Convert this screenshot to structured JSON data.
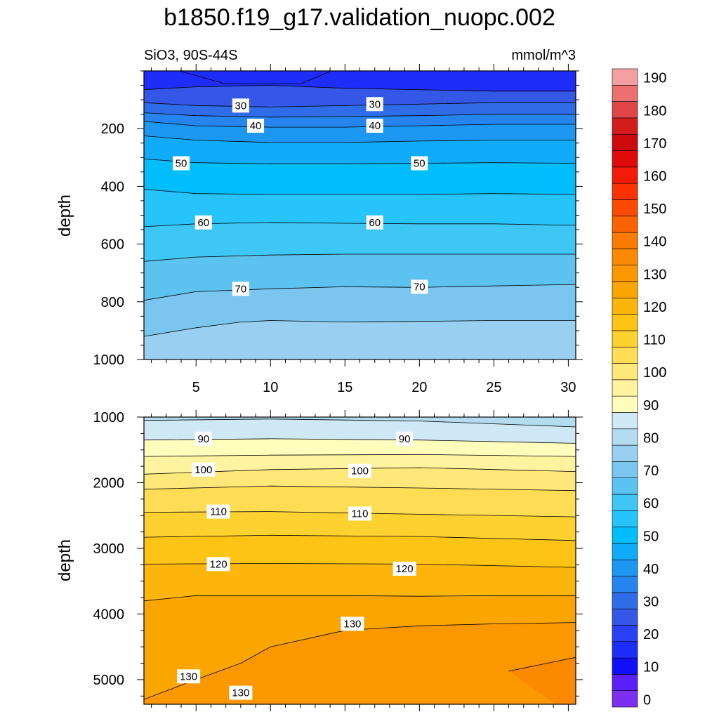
{
  "title": "b1850.f19_g17.validation_nuopc.002",
  "chart_data": [
    {
      "type": "heatmap",
      "panel": "upper",
      "subtitle_left": "SiO3, 90S-44S",
      "subtitle_right": "mmol/m^3",
      "xlabel": "",
      "ylabel": "depth",
      "xlim": [
        1.5,
        30.5
      ],
      "ylim": [
        1000,
        0
      ],
      "x_ticks": [
        "5",
        "10",
        "15",
        "20",
        "25",
        "30"
      ],
      "y_ticks": [
        "200",
        "400",
        "600",
        "800",
        "1000"
      ],
      "contours": [
        {
          "level": 20,
          "x": [
            4,
            7,
            10,
            12,
            14
          ],
          "y": [
            2,
            45,
            45,
            45,
            2
          ]
        },
        {
          "level": 25,
          "x": [
            1.5,
            5,
            10,
            15,
            20,
            25,
            30.5
          ],
          "y": [
            65,
            55,
            50,
            60,
            65,
            70,
            70
          ]
        },
        {
          "level": 30,
          "x": [
            1.5,
            5,
            10,
            15,
            20,
            25,
            30.5
          ],
          "y": [
            110,
            120,
            125,
            120,
            115,
            110,
            110
          ]
        },
        {
          "level": 35,
          "x": [
            1.5,
            5,
            10,
            15,
            20,
            25,
            30.5
          ],
          "y": [
            145,
            155,
            160,
            158,
            155,
            150,
            150
          ]
        },
        {
          "level": 40,
          "x": [
            1.5,
            5,
            10,
            15,
            20,
            25,
            30.5
          ],
          "y": [
            175,
            190,
            195,
            195,
            190,
            185,
            185
          ]
        },
        {
          "level": 45,
          "x": [
            1.5,
            5,
            10,
            15,
            20,
            25,
            30.5
          ],
          "y": [
            225,
            240,
            248,
            248,
            243,
            240,
            240
          ]
        },
        {
          "level": 50,
          "x": [
            1.5,
            5,
            10,
            15,
            20,
            25,
            30.5
          ],
          "y": [
            305,
            318,
            322,
            322,
            320,
            318,
            320
          ]
        },
        {
          "level": 55,
          "x": [
            1.5,
            5,
            10,
            15,
            20,
            25,
            30.5
          ],
          "y": [
            410,
            425,
            428,
            428,
            428,
            425,
            428
          ]
        },
        {
          "level": 60,
          "x": [
            1.5,
            5,
            10,
            15,
            20,
            25,
            30.5
          ],
          "y": [
            540,
            530,
            525,
            528,
            530,
            530,
            535
          ]
        },
        {
          "level": 65,
          "x": [
            1.5,
            5,
            10,
            15,
            20,
            25,
            30.5
          ],
          "y": [
            660,
            645,
            638,
            635,
            635,
            635,
            635
          ]
        },
        {
          "level": 70,
          "x": [
            1.5,
            5,
            10,
            15,
            20,
            25,
            30.5
          ],
          "y": [
            795,
            765,
            755,
            748,
            750,
            745,
            740
          ]
        },
        {
          "level": 75,
          "x": [
            1.5,
            5,
            8,
            10,
            15,
            20,
            25,
            30.5
          ],
          "y": [
            920,
            890,
            870,
            865,
            870,
            868,
            865,
            865
          ]
        }
      ],
      "contour_labels": [
        {
          "text": "30",
          "x": 8,
          "y": 120
        },
        {
          "text": "30",
          "x": 17,
          "y": 115
        },
        {
          "text": "40",
          "x": 9,
          "y": 190
        },
        {
          "text": "40",
          "x": 17,
          "y": 190
        },
        {
          "text": "50",
          "x": 4,
          "y": 320
        },
        {
          "text": "50",
          "x": 20,
          "y": 320
        },
        {
          "text": "60",
          "x": 5.5,
          "y": 525
        },
        {
          "text": "60",
          "x": 17,
          "y": 525
        },
        {
          "text": "70",
          "x": 8,
          "y": 755
        },
        {
          "text": "70",
          "x": 20,
          "y": 748
        }
      ]
    },
    {
      "type": "heatmap",
      "panel": "lower",
      "xlabel": "",
      "ylabel": "depth",
      "xlim": [
        1.5,
        30.5
      ],
      "ylim": [
        5375,
        1000
      ],
      "y_ticks": [
        "1000",
        "2000",
        "3000",
        "4000",
        "5000"
      ],
      "contours": [
        {
          "level": 85,
          "x": [
            1.5,
            10,
            20,
            30.5
          ],
          "y": [
            1050,
            1030,
            1060,
            1150
          ]
        },
        {
          "level": 90,
          "x": [
            1.5,
            10,
            20,
            30.5
          ],
          "y": [
            1350,
            1330,
            1350,
            1400
          ]
        },
        {
          "level": 95,
          "x": [
            1.5,
            10,
            20,
            30.5
          ],
          "y": [
            1600,
            1580,
            1570,
            1600
          ]
        },
        {
          "level": 100,
          "x": [
            1.5,
            10,
            20,
            30.5
          ],
          "y": [
            1870,
            1800,
            1770,
            1830
          ]
        },
        {
          "level": 105,
          "x": [
            1.5,
            10,
            20,
            30.5
          ],
          "y": [
            2100,
            2050,
            2080,
            2120
          ]
        },
        {
          "level": 110,
          "x": [
            1.5,
            10,
            20,
            30.5
          ],
          "y": [
            2450,
            2440,
            2480,
            2520
          ]
        },
        {
          "level": 115,
          "x": [
            1.5,
            10,
            20,
            30.5
          ],
          "y": [
            2830,
            2800,
            2820,
            2880
          ]
        },
        {
          "level": 120,
          "x": [
            1.5,
            10,
            20,
            30.5
          ],
          "y": [
            3240,
            3230,
            3240,
            3290
          ]
        },
        {
          "level": 125,
          "x": [
            1.5,
            5,
            10,
            15,
            20,
            25,
            30.5
          ],
          "y": [
            3800,
            3720,
            3720,
            3720,
            3730,
            3720,
            3720
          ]
        },
        {
          "level": 130,
          "x": [
            1.5,
            5,
            8,
            10,
            15,
            20,
            25,
            30.5
          ],
          "y": [
            5300,
            5000,
            4750,
            4500,
            4250,
            4180,
            4150,
            4130
          ]
        },
        {
          "level": 135,
          "x": [
            26,
            30.5
          ],
          "y": [
            4870,
            4660
          ]
        }
      ],
      "contour_labels": [
        {
          "text": "90",
          "x": 5.5,
          "y": 1330
        },
        {
          "text": "90",
          "x": 19,
          "y": 1330
        },
        {
          "text": "100",
          "x": 5.5,
          "y": 1800
        },
        {
          "text": "100",
          "x": 16,
          "y": 1820
        },
        {
          "text": "110",
          "x": 6.5,
          "y": 2440
        },
        {
          "text": "110",
          "x": 16,
          "y": 2470
        },
        {
          "text": "120",
          "x": 6.5,
          "y": 3240
        },
        {
          "text": "120",
          "x": 19,
          "y": 3310
        },
        {
          "text": "130",
          "x": 15.5,
          "y": 4150
        },
        {
          "text": "130",
          "x": 4.5,
          "y": 4950
        },
        {
          "text": "130",
          "x": 8,
          "y": 5200
        }
      ]
    }
  ],
  "colorbar": {
    "levels": [
      0,
      5,
      10,
      15,
      20,
      25,
      30,
      35,
      40,
      45,
      50,
      55,
      60,
      65,
      70,
      75,
      80,
      85,
      90,
      95,
      100,
      105,
      110,
      115,
      120,
      125,
      130,
      135,
      140,
      145,
      150,
      155,
      160,
      165,
      170,
      175,
      180,
      185,
      190,
      195
    ],
    "labels": [
      "0",
      "10",
      "20",
      "30",
      "40",
      "50",
      "60",
      "70",
      "80",
      "90",
      "100",
      "110",
      "120",
      "130",
      "140",
      "150",
      "160",
      "170",
      "180",
      "190"
    ],
    "colors": [
      "#7b2ff0",
      "#5a1ffa",
      "#1010fa",
      "#1f2dfa",
      "#2a42f5",
      "#3457e8",
      "#2f6de8",
      "#2584ee",
      "#1c98f3",
      "#10acfa",
      "#00bdfc",
      "#27c4fb",
      "#3ec6f5",
      "#5cc2ef",
      "#7ac6ee",
      "#99cff0",
      "#b4dcf1",
      "#cfe8f6",
      "#fffdbc",
      "#fff3a0",
      "#fee87a",
      "#fedd55",
      "#fdd130",
      "#fdc415",
      "#fcb50a",
      "#fba600",
      "#fb9800",
      "#fb8a00",
      "#fb7a00",
      "#fb6200",
      "#fb4a00",
      "#fb3200",
      "#f41a0a",
      "#e00a0a",
      "#cc0a0a",
      "#d41c1c",
      "#e04545",
      "#ec7070",
      "#f5a0a0"
    ]
  }
}
